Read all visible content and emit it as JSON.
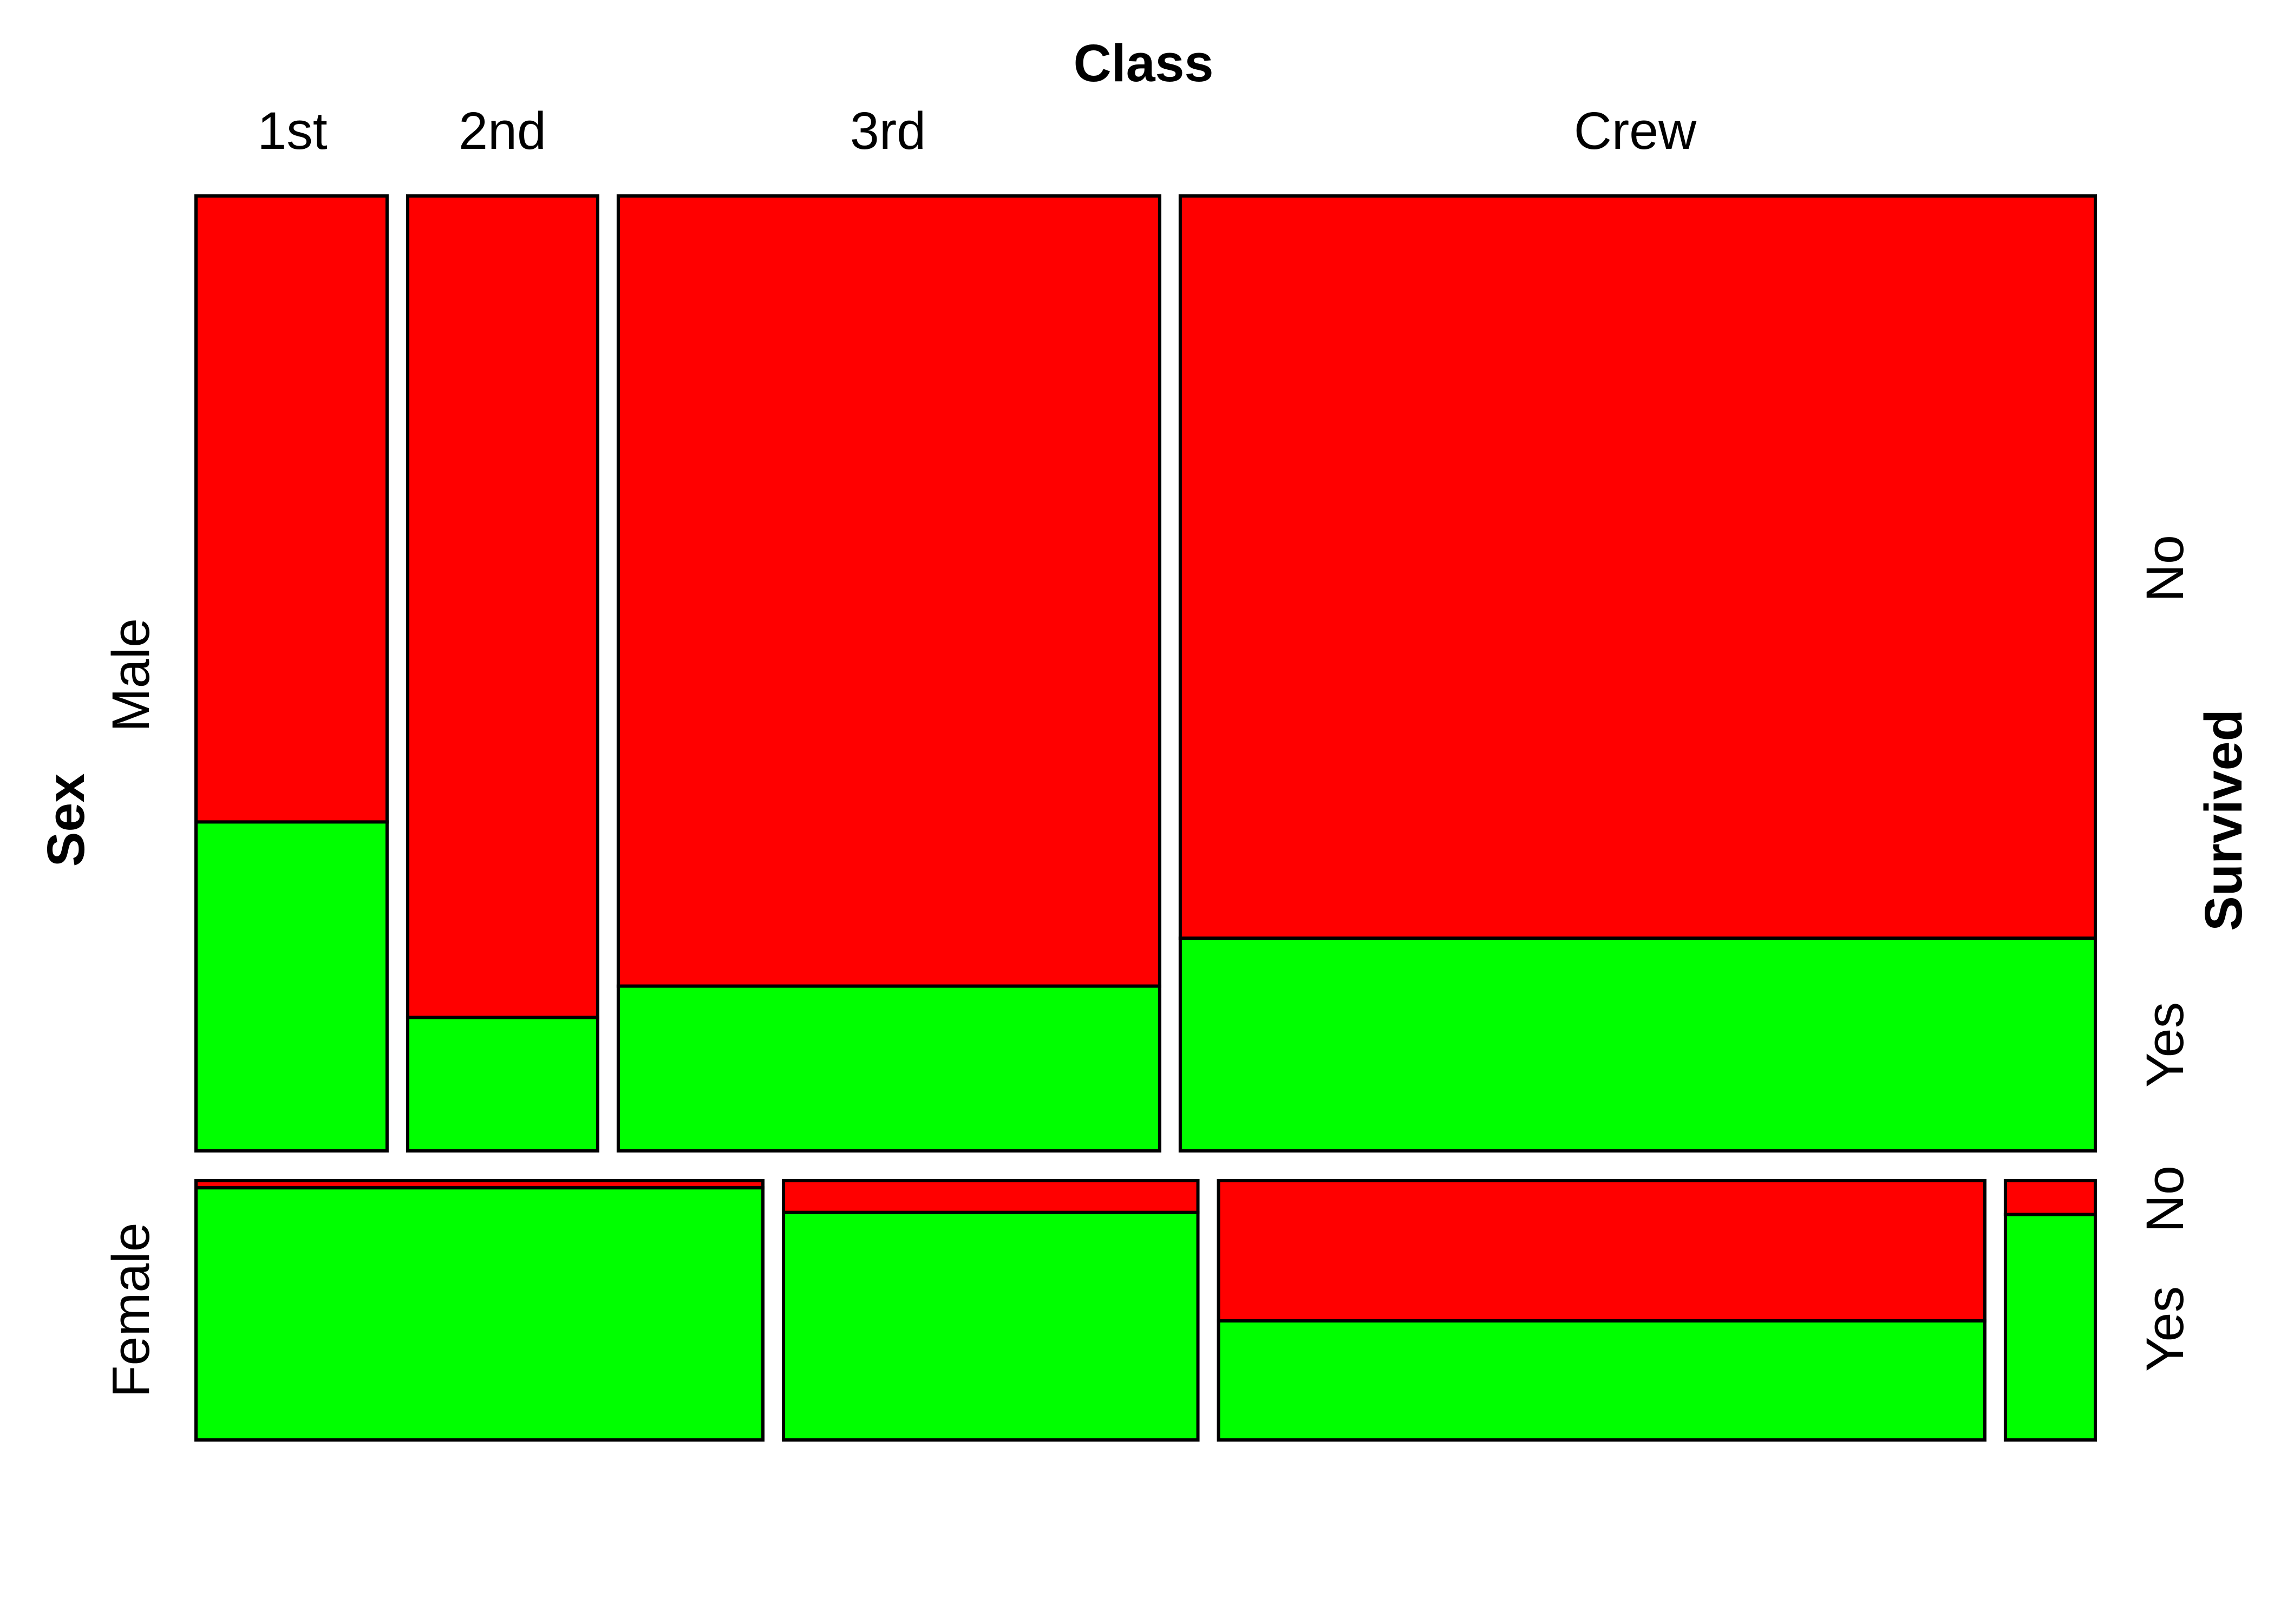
{
  "chart_data": {
    "type": "mosaic",
    "variables": {
      "x": {
        "title": "Class",
        "levels": [
          "1st",
          "2nd",
          "3rd",
          "Crew"
        ]
      },
      "y": {
        "title": "Sex",
        "levels": [
          "Male",
          "Female"
        ]
      },
      "fill": {
        "title": "Survived",
        "levels": [
          "No",
          "Yes"
        ]
      }
    },
    "colors": {
      "No": "#ff0000",
      "Yes": "#00ff00"
    },
    "counts": {
      "Male": {
        "1st": {
          "No": 118,
          "Yes": 62
        },
        "2nd": {
          "No": 154,
          "Yes": 25
        },
        "3rd": {
          "No": 422,
          "Yes": 88
        },
        "Crew": {
          "No": 670,
          "Yes": 192
        }
      },
      "Female": {
        "1st": {
          "No": 4,
          "Yes": 141
        },
        "2nd": {
          "No": 13,
          "Yes": 93
        },
        "3rd": {
          "No": 106,
          "Yes": 90
        },
        "Crew": {
          "No": 3,
          "Yes": 20
        }
      }
    },
    "right_labels": {
      "Male": [
        "No",
        "Yes"
      ],
      "Female": [
        "No",
        "Yes"
      ]
    }
  }
}
